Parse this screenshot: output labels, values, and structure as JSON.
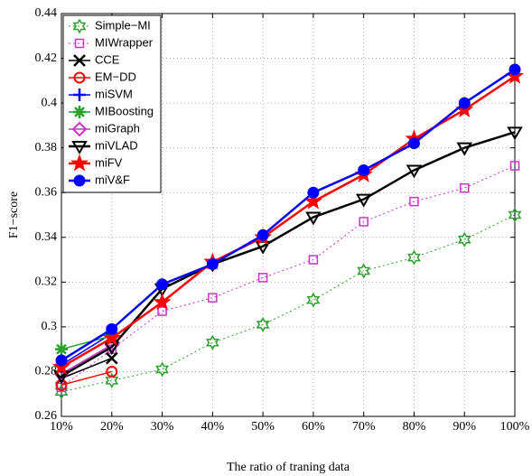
{
  "chart_data": {
    "type": "line",
    "x_label": "The ratio of traning data",
    "y_label": "F1−score",
    "categories": [
      "10%",
      "20%",
      "30%",
      "40%",
      "50%",
      "60%",
      "70%",
      "80%",
      "90%",
      "100%"
    ],
    "ylim": [
      0.26,
      0.44
    ],
    "yticks": [
      0.26,
      0.28,
      0.3,
      0.32,
      0.34,
      0.36,
      0.38,
      0.4,
      0.42,
      0.44
    ],
    "grid": true,
    "legend": "upper-left",
    "series": [
      {
        "name": "Simple−MI",
        "color": "#2ca02c",
        "marker": "hexagram",
        "linestyle": "dotted",
        "width": 1,
        "values": [
          0.271,
          0.276,
          0.281,
          0.293,
          0.301,
          0.312,
          0.325,
          0.331,
          0.339,
          0.35
        ]
      },
      {
        "name": "MIWrapper",
        "color": "#cc33cc",
        "marker": "square",
        "linestyle": "dotted",
        "width": 1,
        "values": [
          0.273,
          0.29,
          0.307,
          0.313,
          0.322,
          0.33,
          0.347,
          0.356,
          0.362,
          0.372
        ]
      },
      {
        "name": "CCE",
        "color": "#000000",
        "marker": "x",
        "linestyle": "solid",
        "width": 1.5,
        "values": [
          0.277,
          0.286,
          null,
          null,
          null,
          null,
          null,
          null,
          null,
          null
        ]
      },
      {
        "name": "EM−DD",
        "color": "#ff0000",
        "marker": "circle",
        "linestyle": "solid",
        "width": 1.5,
        "values": [
          0.274,
          0.28,
          null,
          null,
          null,
          null,
          null,
          null,
          null,
          null
        ]
      },
      {
        "name": "miSVM",
        "color": "#0000ff",
        "marker": "plus",
        "linestyle": "solid",
        "width": 1.5,
        "values": [
          0.283,
          0.297,
          null,
          null,
          null,
          null,
          null,
          null,
          null,
          null
        ]
      },
      {
        "name": "MIBoosting",
        "color": "#2ca02c",
        "marker": "asterisk",
        "linestyle": "solid",
        "width": 1.5,
        "values": [
          0.29,
          0.296,
          null,
          null,
          null,
          null,
          null,
          null,
          null,
          null
        ]
      },
      {
        "name": "miGraph",
        "color": "#cc33cc",
        "marker": "diamond",
        "linestyle": "solid",
        "width": 1.5,
        "values": [
          0.279,
          0.292,
          null,
          null,
          null,
          null,
          null,
          null,
          null,
          null
        ]
      },
      {
        "name": "miVLAD",
        "color": "#000000",
        "marker": "triangle-down",
        "linestyle": "solid",
        "width": 2.5,
        "values": [
          0.278,
          0.291,
          0.317,
          0.328,
          0.336,
          0.349,
          0.357,
          0.37,
          0.38,
          0.387
        ]
      },
      {
        "name": "miFV",
        "color": "#ff0000",
        "marker": "pentagram",
        "linestyle": "solid",
        "width": 2.5,
        "values": [
          0.282,
          0.295,
          0.311,
          0.329,
          0.34,
          0.356,
          0.368,
          0.384,
          0.397,
          0.412
        ]
      },
      {
        "name": "miV&F",
        "color": "#0000ff",
        "marker": "filled-circle",
        "linestyle": "solid",
        "width": 2.5,
        "values": [
          0.285,
          0.299,
          0.319,
          0.328,
          0.341,
          0.36,
          0.37,
          0.382,
          0.4,
          0.415
        ]
      }
    ]
  }
}
